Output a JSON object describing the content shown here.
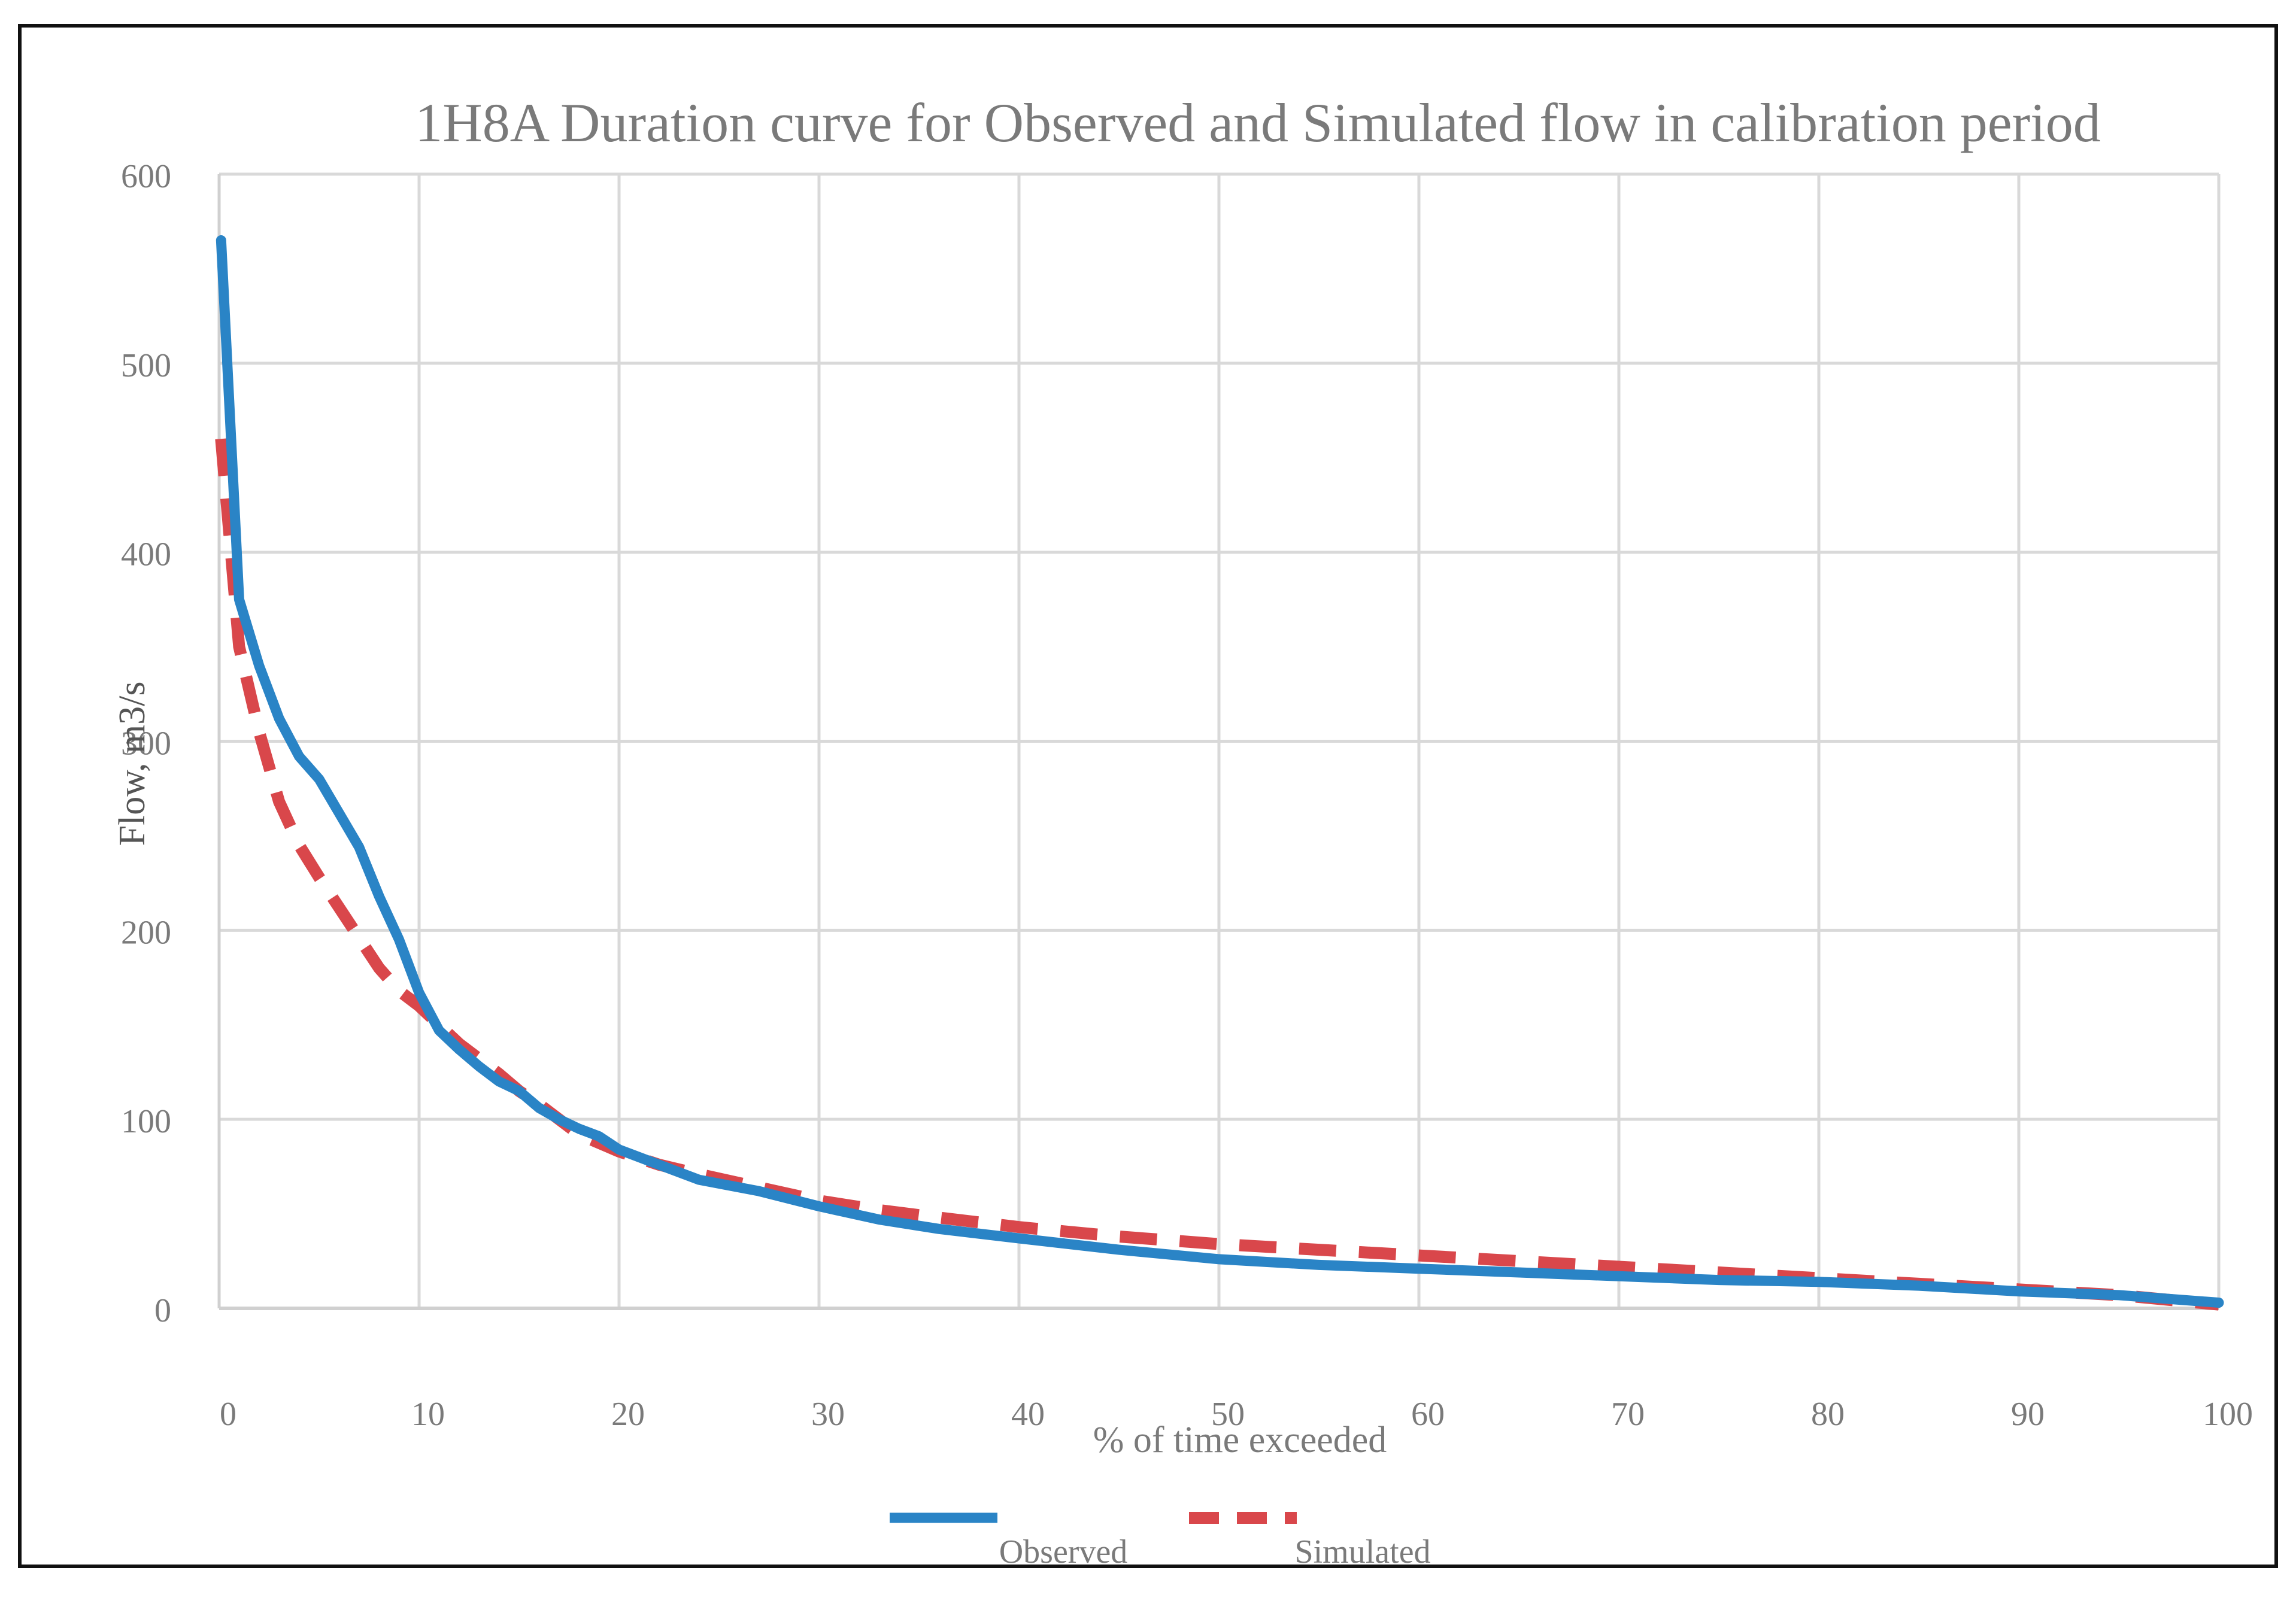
{
  "chart_data": {
    "type": "line",
    "title": "1H8A Duration curve for Observed and Simulated flow in calibration period",
    "xlabel": "% of time exceeded",
    "ylabel": "Flow, m3/s",
    "xlim": [
      0,
      100
    ],
    "ylim": [
      0,
      600
    ],
    "grid": true,
    "legend_position": "bottom-center",
    "x_ticks": [
      0,
      10,
      20,
      30,
      40,
      50,
      60,
      70,
      80,
      90,
      100
    ],
    "y_ticks": [
      0,
      100,
      200,
      300,
      400,
      500,
      600
    ],
    "series": [
      {
        "name": "Observed",
        "color": "#2a84c6",
        "style": "solid",
        "x": [
          0.1,
          1,
          2,
          3,
          4,
          5,
          6,
          7,
          8,
          9,
          10,
          11,
          12,
          13,
          14,
          15,
          16,
          17,
          18,
          19,
          20,
          22,
          24,
          27,
          30,
          33,
          36,
          40,
          45,
          50,
          55,
          60,
          65,
          70,
          75,
          80,
          85,
          90,
          95,
          100
        ],
        "y": [
          565,
          375,
          340,
          312,
          292,
          280,
          262,
          244,
          218,
          195,
          167,
          147,
          137,
          128,
          120,
          115,
          106,
          100,
          95,
          91,
          84,
          76,
          68,
          62,
          54,
          47,
          42,
          37,
          31,
          26,
          23,
          21,
          19,
          17,
          15,
          14,
          12,
          9,
          7,
          3
        ]
      },
      {
        "name": "Simulated",
        "color": "#d9474b",
        "style": "dashed",
        "x": [
          0.1,
          1,
          2,
          3,
          4,
          5,
          6,
          7,
          8,
          9,
          10,
          11,
          12,
          13,
          14,
          15,
          16,
          17,
          18,
          20,
          22,
          24,
          27,
          30,
          33,
          36,
          40,
          45,
          50,
          55,
          60,
          65,
          70,
          75,
          80,
          85,
          90,
          95,
          100
        ],
        "y": [
          460,
          350,
          305,
          268,
          245,
          228,
          212,
          196,
          180,
          168,
          160,
          150,
          140,
          132,
          124,
          115,
          108,
          100,
          92,
          83,
          76,
          71,
          64,
          57,
          52,
          48,
          43,
          38,
          34,
          31,
          28,
          25,
          22,
          19,
          16,
          13,
          10,
          7,
          2
        ]
      }
    ]
  }
}
